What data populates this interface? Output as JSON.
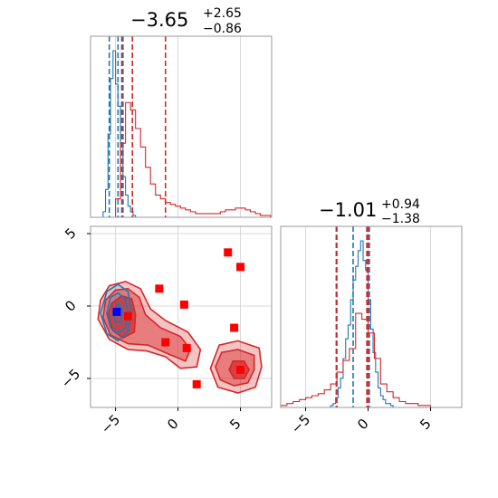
{
  "chart_data": [
    {
      "type": "histogram",
      "panel": "top-left",
      "title": {
        "main": "−3.65",
        "sup": "+2.65",
        "sub": "−0.86"
      },
      "xlim": [
        -7,
        7.5
      ],
      "grid": true,
      "series": [
        {
          "color": "#1f77b4",
          "style": "step",
          "bin_edges": [
            -6.0,
            -5.8,
            -5.6,
            -5.4,
            -5.2,
            -5.0,
            -4.8,
            -4.6,
            -4.4,
            -4.2,
            -4.0,
            -3.8,
            -3.6,
            -3.4,
            -3.2,
            -3.0
          ],
          "heights": [
            0.03,
            0.15,
            0.45,
            0.75,
            0.9,
            0.72,
            0.6,
            0.4,
            0.22,
            0.12,
            0.06,
            0.03,
            0.01,
            0.0,
            0.0
          ],
          "quantile_lines": [
            -5.5,
            -4.8,
            -4.4
          ]
        },
        {
          "color": "#d62728",
          "style": "step",
          "bin_edges": [
            -5.0,
            -4.6,
            -4.2,
            -3.8,
            -3.4,
            -3.0,
            -2.6,
            -2.2,
            -1.8,
            -1.4,
            -1.0,
            -0.6,
            -0.2,
            0.2,
            0.6,
            1.0,
            1.4,
            1.8,
            2.2,
            2.6,
            3.0,
            3.4,
            3.8,
            4.2,
            4.6,
            5.0,
            5.4,
            5.8,
            6.2,
            6.6,
            7.0,
            7.4
          ],
          "heights": [
            0.1,
            0.4,
            0.62,
            0.58,
            0.48,
            0.38,
            0.27,
            0.18,
            0.12,
            0.1,
            0.08,
            0.07,
            0.06,
            0.05,
            0.04,
            0.03,
            0.02,
            0.02,
            0.02,
            0.02,
            0.02,
            0.03,
            0.04,
            0.04,
            0.05,
            0.05,
            0.04,
            0.03,
            0.02,
            0.01,
            0.01
          ],
          "quantile_lines": [
            -4.5,
            -3.65,
            -1.0
          ]
        }
      ]
    },
    {
      "type": "contour",
      "panel": "bottom-left",
      "xlim": [
        -7,
        7.5
      ],
      "ylim": [
        -7,
        5.5
      ],
      "xticks": [
        -5,
        0,
        5
      ],
      "yticks": [
        -5,
        0,
        5
      ],
      "xtick_labels": [
        "−5",
        "0",
        "5"
      ],
      "ytick_labels": [
        "−5",
        "0",
        "5"
      ],
      "grid": true,
      "red_markers": [
        {
          "x": -4.0,
          "y": -0.7
        },
        {
          "x": -1.5,
          "y": 1.2
        },
        {
          "x": 0.5,
          "y": 0.1
        },
        {
          "x": -1.0,
          "y": -2.5
        },
        {
          "x": 0.7,
          "y": -2.9
        },
        {
          "x": 4.0,
          "y": 3.7
        },
        {
          "x": 5.0,
          "y": 2.7
        },
        {
          "x": 4.5,
          "y": -1.5
        },
        {
          "x": 5.0,
          "y": -4.4
        },
        {
          "x": 1.5,
          "y": -5.4
        }
      ],
      "blue_markers": [
        {
          "x": -4.9,
          "y": -0.4
        }
      ],
      "red_contour_levels": [
        [
          [
            -6.2,
            0.4
          ],
          [
            -5.5,
            1.4
          ],
          [
            -4.2,
            1.7
          ],
          [
            -3.0,
            1.2
          ],
          [
            -2.2,
            -0.2
          ],
          [
            -1.0,
            -1.0
          ],
          [
            0.8,
            -1.8
          ],
          [
            1.8,
            -3.0
          ],
          [
            1.5,
            -4.2
          ],
          [
            0.2,
            -4.3
          ],
          [
            -1.0,
            -3.5
          ],
          [
            -2.5,
            -3.1
          ],
          [
            -4.0,
            -3.0
          ],
          [
            -5.5,
            -2.3
          ],
          [
            -6.4,
            -0.9
          ]
        ],
        [
          [
            -5.8,
            0.4
          ],
          [
            -5.0,
            1.1
          ],
          [
            -4.0,
            1.2
          ],
          [
            -3.1,
            0.6
          ],
          [
            -2.6,
            -0.6
          ],
          [
            -1.4,
            -1.5
          ],
          [
            0.2,
            -2.1
          ],
          [
            1.0,
            -3.0
          ],
          [
            0.6,
            -3.8
          ],
          [
            -0.8,
            -3.3
          ],
          [
            -2.4,
            -2.7
          ],
          [
            -4.0,
            -2.6
          ],
          [
            -5.4,
            -2.0
          ],
          [
            -6.0,
            -0.8
          ]
        ],
        [
          [
            -5.3,
            0.2
          ],
          [
            -4.5,
            0.7
          ],
          [
            -3.7,
            0.5
          ],
          [
            -3.4,
            -0.6
          ],
          [
            -3.5,
            -1.8
          ],
          [
            -4.4,
            -2.2
          ],
          [
            -5.2,
            -1.7
          ],
          [
            -5.6,
            -0.6
          ]
        ]
      ],
      "red_contour_levels_2": [
        [
          [
            3.3,
            -2.7
          ],
          [
            4.8,
            -2.4
          ],
          [
            6.5,
            -2.9
          ],
          [
            6.7,
            -4.2
          ],
          [
            6.2,
            -5.6
          ],
          [
            4.8,
            -6.0
          ],
          [
            3.2,
            -5.6
          ],
          [
            2.6,
            -4.3
          ]
        ],
        [
          [
            3.5,
            -3.2
          ],
          [
            4.8,
            -3.0
          ],
          [
            6.1,
            -3.4
          ],
          [
            6.1,
            -4.4
          ],
          [
            5.6,
            -5.3
          ],
          [
            4.5,
            -5.5
          ],
          [
            3.4,
            -5.1
          ],
          [
            3.0,
            -4.2
          ]
        ],
        [
          [
            4.4,
            -3.8
          ],
          [
            5.3,
            -3.8
          ],
          [
            5.7,
            -4.4
          ],
          [
            5.3,
            -5.0
          ],
          [
            4.5,
            -5.0
          ],
          [
            4.1,
            -4.4
          ]
        ]
      ],
      "blue_contour_levels": [
        [
          [
            -6.2,
            -0.5
          ],
          [
            -5.7,
            1.0
          ],
          [
            -4.8,
            1.5
          ],
          [
            -4.0,
            1.0
          ],
          [
            -3.7,
            -0.3
          ],
          [
            -4.0,
            -1.8
          ],
          [
            -4.8,
            -2.4
          ],
          [
            -5.7,
            -1.9
          ]
        ],
        [
          [
            -5.7,
            -0.5
          ],
          [
            -5.4,
            0.6
          ],
          [
            -4.8,
            0.9
          ],
          [
            -4.2,
            0.5
          ],
          [
            -4.0,
            -0.5
          ],
          [
            -4.2,
            -1.5
          ],
          [
            -4.8,
            -1.9
          ],
          [
            -5.4,
            -1.5
          ]
        ],
        [
          [
            -5.2,
            -0.4
          ],
          [
            -4.8,
            0.2
          ],
          [
            -4.4,
            -0.3
          ],
          [
            -4.6,
            -1.1
          ],
          [
            -5.0,
            -1.1
          ]
        ]
      ]
    },
    {
      "type": "histogram",
      "panel": "bottom-right",
      "title": {
        "main": "−1.01",
        "sup": "+0.94",
        "sub": "−1.38"
      },
      "xlim": [
        -7,
        7.5
      ],
      "xticks": [
        -5,
        0,
        5
      ],
      "xtick_labels": [
        "−5",
        "0",
        "5"
      ],
      "grid": true,
      "series": [
        {
          "color": "#1f77b4",
          "style": "step",
          "bin_edges": [
            -3.0,
            -2.8,
            -2.6,
            -2.4,
            -2.2,
            -2.0,
            -1.8,
            -1.6,
            -1.4,
            -1.2,
            -1.0,
            -0.8,
            -0.6,
            -0.4,
            -0.2,
            0.0,
            0.2,
            0.4,
            0.6,
            0.8,
            1.0,
            1.2,
            1.4,
            1.6,
            1.8,
            2.0,
            2.2
          ],
          "heights": [
            0.01,
            0.02,
            0.05,
            0.1,
            0.15,
            0.25,
            0.35,
            0.42,
            0.55,
            0.65,
            0.72,
            0.8,
            0.85,
            0.75,
            0.7,
            0.55,
            0.4,
            0.28,
            0.18,
            0.1,
            0.06,
            0.04,
            0.02,
            0.02,
            0.01,
            0.0
          ],
          "quantile_lines": [
            -2.5,
            -1.2,
            0.1
          ]
        },
        {
          "color": "#d62728",
          "style": "step",
          "bin_edges": [
            -7.0,
            -6.5,
            -6.0,
            -5.5,
            -5.0,
            -4.5,
            -4.0,
            -3.5,
            -3.0,
            -2.5,
            -2.0,
            -1.5,
            -1.0,
            -0.5,
            0.0,
            0.5,
            1.0,
            1.5,
            2.0,
            2.5,
            3.0,
            3.5,
            4.0,
            4.5,
            5.0
          ],
          "heights": [
            0.01,
            0.02,
            0.03,
            0.04,
            0.05,
            0.06,
            0.07,
            0.09,
            0.12,
            0.18,
            0.24,
            0.3,
            0.48,
            0.45,
            0.38,
            0.25,
            0.12,
            0.08,
            0.05,
            0.03,
            0.02,
            0.02,
            0.01,
            0.01
          ],
          "quantile_lines": [
            -2.55,
            -0.1,
            0.0
          ]
        }
      ]
    }
  ]
}
